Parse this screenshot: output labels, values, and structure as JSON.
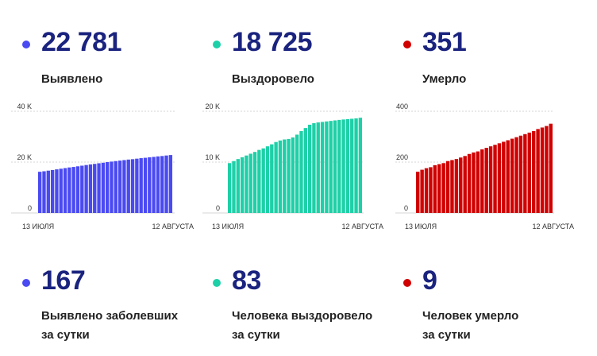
{
  "stats_top": [
    {
      "value": "22 781",
      "label": "Выявлено",
      "color": "#4a4af2"
    },
    {
      "value": "18 725",
      "label": "Выздоровело",
      "color": "#1ed0a7"
    },
    {
      "value": "351",
      "label": "Умерло",
      "color": "#d10000"
    }
  ],
  "stats_bottom": [
    {
      "value": "167",
      "label_line1": "Выявлено заболевших",
      "label_line2": "за сутки",
      "color": "#4a4af2"
    },
    {
      "value": "83",
      "label_line1": "Человека выздоровело",
      "label_line2": "за сутки",
      "color": "#1ed0a7"
    },
    {
      "value": "9",
      "label_line1": "Человек умерло",
      "label_line2": "за сутки",
      "color": "#d10000"
    }
  ],
  "chart_data": [
    {
      "type": "bar",
      "color": "#4a4af2",
      "x_start_label": "13 ИЮЛЯ",
      "x_end_label": "12 АВГУСТА",
      "ylim": [
        0,
        40000
      ],
      "yticks": [
        {
          "v": 0,
          "label": "0"
        },
        {
          "v": 20000,
          "label": "20 K"
        },
        {
          "v": 40000,
          "label": "40 K"
        }
      ],
      "values": [
        16200,
        16400,
        16650,
        16900,
        17150,
        17400,
        17650,
        17900,
        18100,
        18350,
        18600,
        18850,
        19100,
        19300,
        19550,
        19750,
        20000,
        20200,
        20400,
        20600,
        20800,
        21000,
        21150,
        21350,
        21550,
        21700,
        21900,
        22050,
        22250,
        22400,
        22600,
        22781
      ]
    },
    {
      "type": "bar",
      "color": "#1ed0a7",
      "x_start_label": "13 ИЮЛЯ",
      "x_end_label": "12 АВГУСТА",
      "ylim": [
        0,
        20000
      ],
      "yticks": [
        {
          "v": 0,
          "label": "0"
        },
        {
          "v": 10000,
          "label": "10 K"
        },
        {
          "v": 20000,
          "label": "20 K"
        }
      ],
      "values": [
        9800,
        10200,
        10600,
        10950,
        11300,
        11650,
        12000,
        12400,
        12700,
        13100,
        13500,
        13950,
        14250,
        14450,
        14550,
        14850,
        15400,
        16100,
        16700,
        17350,
        17650,
        17800,
        17900,
        18000,
        18100,
        18200,
        18300,
        18380,
        18450,
        18520,
        18600,
        18725
      ]
    },
    {
      "type": "bar",
      "color": "#d10000",
      "x_start_label": "13 ИЮЛЯ",
      "x_end_label": "12 АВГУСТА",
      "ylim": [
        0,
        400
      ],
      "yticks": [
        {
          "v": 0,
          "label": "0"
        },
        {
          "v": 200,
          "label": "200"
        },
        {
          "v": 400,
          "label": "400"
        }
      ],
      "values": [
        162,
        170,
        176,
        180,
        188,
        192,
        196,
        204,
        208,
        212,
        218,
        224,
        232,
        238,
        242,
        250,
        256,
        262,
        268,
        274,
        280,
        286,
        292,
        298,
        304,
        310,
        316,
        322,
        330,
        336,
        342,
        351
      ]
    }
  ]
}
